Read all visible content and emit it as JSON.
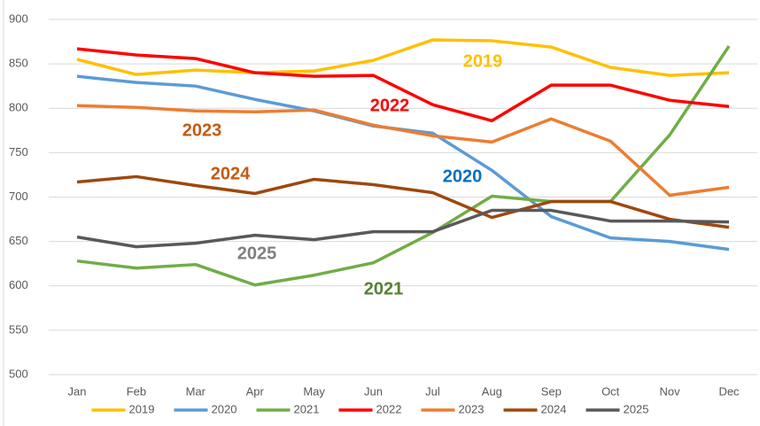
{
  "chart_data": {
    "type": "line",
    "categories": [
      "Jan",
      "Feb",
      "Mar",
      "Apr",
      "May",
      "Jun",
      "Jul",
      "Aug",
      "Sep",
      "Oct",
      "Nov",
      "Dec"
    ],
    "series": [
      {
        "name": "2019",
        "color": "#ffc000",
        "values": [
          855,
          838,
          843,
          840,
          842,
          854,
          877,
          876,
          869,
          846,
          837,
          840
        ]
      },
      {
        "name": "2020",
        "color": "#5b9bd5",
        "values": [
          836,
          829,
          825,
          810,
          797,
          780,
          772,
          730,
          678,
          654,
          650,
          641
        ]
      },
      {
        "name": "2021",
        "color": "#70ad47",
        "values": [
          628,
          620,
          624,
          601,
          612,
          626,
          660,
          701,
          695,
          695,
          770,
          870
        ]
      },
      {
        "name": "2022",
        "color": "#ff0000",
        "values": [
          867,
          860,
          856,
          840,
          836,
          837,
          804,
          786,
          826,
          826,
          809,
          802
        ]
      },
      {
        "name": "2023",
        "color": "#ed7d31",
        "values": [
          803,
          801,
          797,
          796,
          798,
          781,
          769,
          762,
          788,
          763,
          702,
          711
        ]
      },
      {
        "name": "2024",
        "color": "#9e480e",
        "values": [
          717,
          723,
          713,
          704,
          720,
          714,
          705,
          677,
          695,
          695,
          675,
          666
        ]
      },
      {
        "name": "2025",
        "color": "#595959",
        "values": [
          655,
          644,
          648,
          657,
          652,
          661,
          661,
          685,
          685,
          673,
          673,
          672
        ]
      }
    ],
    "annotations": [
      {
        "text": "2019",
        "color": "#ffc000"
      },
      {
        "text": "2022",
        "color": "#ff0000"
      },
      {
        "text": "2023",
        "color": "#c55a11"
      },
      {
        "text": "2024",
        "color": "#c55a11"
      },
      {
        "text": "2020",
        "color": "#0070c0"
      },
      {
        "text": "2025",
        "color": "#7f7f7f"
      },
      {
        "text": "2021",
        "color": "#548235"
      }
    ],
    "ylim": [
      500,
      900
    ],
    "yticks": [
      500,
      550,
      600,
      650,
      700,
      750,
      800,
      850,
      900
    ],
    "grid": true,
    "legend": "bottom"
  }
}
